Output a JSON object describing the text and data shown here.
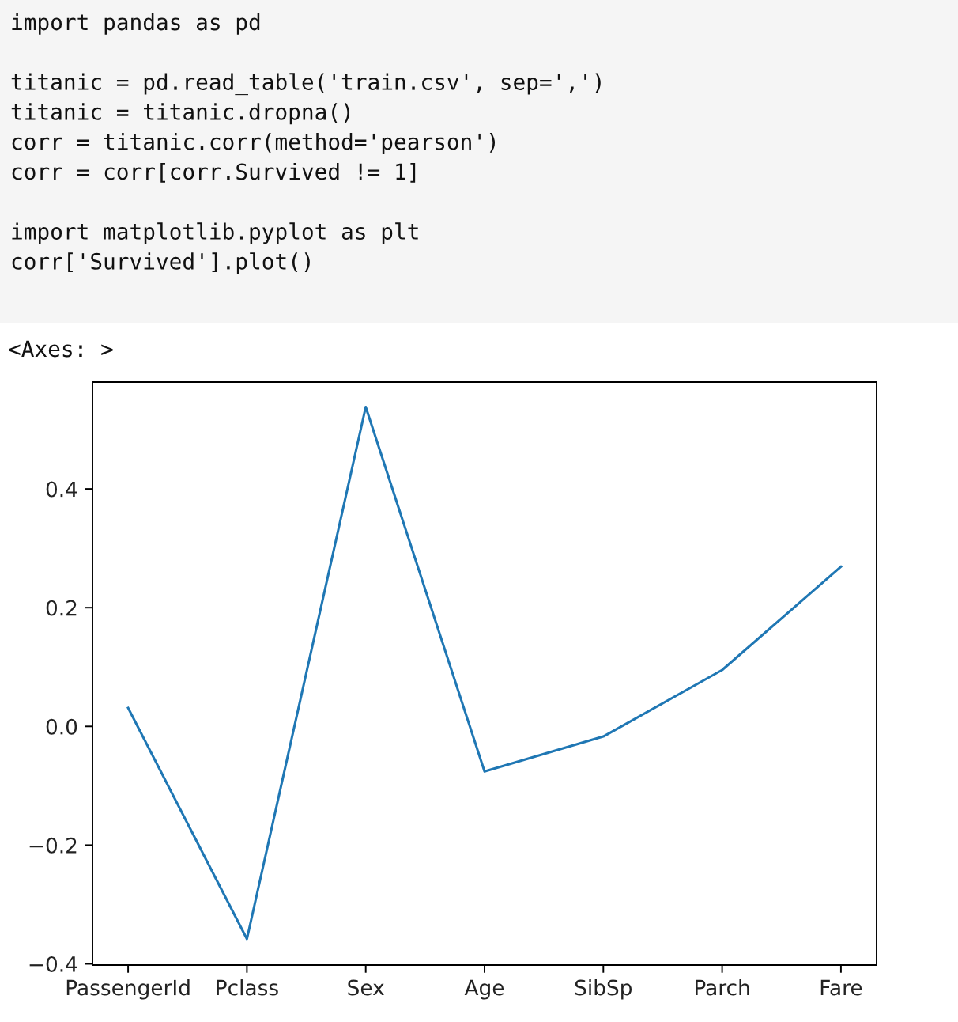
{
  "chart_data": {
    "type": "line",
    "annotations": [
      "import pandas as pd",
      "titanic = pd.read_table('train.csv', sep=',')\ntitanic = titanic.dropna()\ncorr = titanic.corr(method='pearson')\ncorr = corr[corr.Survived != 1]",
      "import matplotlib.pyplot as plt\ncorr['Survived'].plot()",
      "<Axes: >"
    ],
    "categories": [
      "PassengerId",
      "Pclass",
      "Sex",
      "Age",
      "SibSp",
      "Parch",
      "Fare"
    ],
    "series": [
      {
        "color": "#1f77b4",
        "values": [
          0.031,
          -0.358,
          0.538,
          -0.076,
          -0.017,
          0.095,
          0.269
        ]
      }
    ],
    "ylim": [
      -0.402,
      0.58
    ],
    "yticks": [
      {
        "value": -0.4,
        "label": "−0.4"
      },
      {
        "value": -0.2,
        "label": "−0.2"
      },
      {
        "value": 0,
        "label": "0.0"
      },
      0.2,
      0.4
    ],
    "line_style": "solid"
  }
}
